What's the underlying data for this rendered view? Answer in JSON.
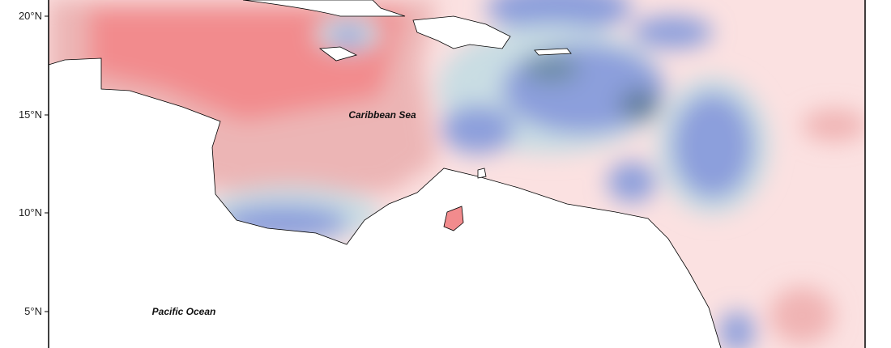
{
  "axis": {
    "labels": [
      "20°N",
      "15°N",
      "10°N",
      "5°N"
    ]
  },
  "annotations": {
    "caribbean": "Caribbean Sea",
    "pacific": "Pacific Ocean"
  }
}
